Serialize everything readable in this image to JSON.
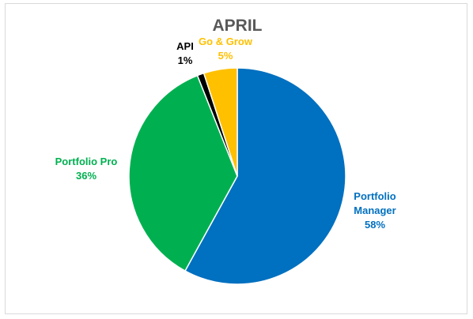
{
  "chart_data": {
    "type": "pie",
    "title": "APRIL",
    "start_angle_deg": 0,
    "direction": "clockwise",
    "slices": [
      {
        "name": "Portfolio Manager",
        "value": 58,
        "label_lines": [
          "Portfolio",
          "Manager"
        ],
        "pct_label": "58%",
        "color": "#0070C0"
      },
      {
        "name": "Portfolio Pro",
        "value": 36,
        "label_lines": [
          "Portfolio Pro"
        ],
        "pct_label": "36%",
        "color": "#00B050"
      },
      {
        "name": "API",
        "value": 1,
        "label_lines": [
          "API"
        ],
        "pct_label": "1%",
        "color": "#000000"
      },
      {
        "name": "Go & Grow",
        "value": 5,
        "label_lines": [
          "Go & Grow"
        ],
        "pct_label": "5%",
        "color": "#FFC000"
      }
    ]
  }
}
